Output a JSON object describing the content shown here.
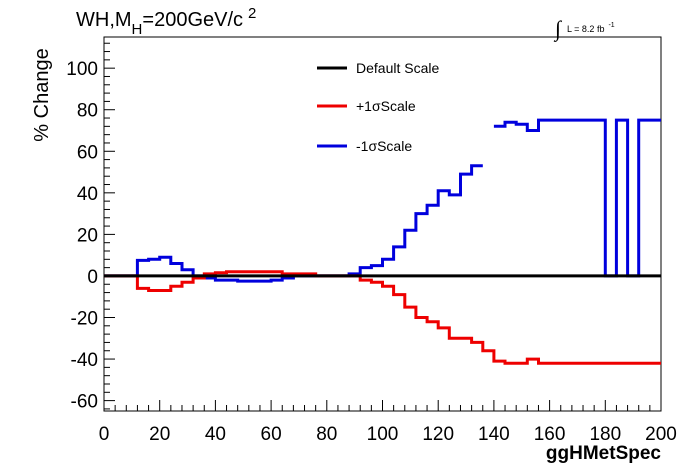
{
  "title": {
    "main": "WH,M",
    "sub": "H",
    "rest": "=200GeV/c",
    "sup": "2"
  },
  "lumi": {
    "integral": "∫",
    "text": "L = 8.2 fb",
    "sup": "-1"
  },
  "chart_data": {
    "type": "line",
    "xlabel": "ggHMetSpec",
    "ylabel": "% Change",
    "xlim": [
      0,
      200
    ],
    "ylim": [
      -65,
      115
    ],
    "xticks": [
      0,
      20,
      40,
      60,
      80,
      100,
      120,
      140,
      160,
      180,
      200
    ],
    "yticks": [
      -60,
      -40,
      -20,
      0,
      20,
      40,
      60,
      80,
      100
    ],
    "grid": false,
    "legend_position": "top-center",
    "bin_width": 4,
    "bin_edges_start": 0,
    "series": [
      {
        "name": "Default Scale",
        "color": "#000000",
        "values": [
          0,
          0,
          0,
          0,
          0,
          0,
          0,
          0,
          0,
          0,
          0,
          0,
          0,
          0,
          0,
          0,
          0,
          0,
          0,
          0,
          0,
          0,
          0,
          0,
          0,
          0,
          0,
          0,
          0,
          0,
          0,
          0,
          0,
          0,
          0,
          0,
          0,
          0,
          0,
          0,
          0,
          0,
          0,
          0,
          0,
          0,
          0,
          0,
          0,
          0
        ]
      },
      {
        "name": "+1σScale",
        "color": "#ee0000",
        "values": [
          0,
          0,
          0,
          -6,
          -7,
          -7,
          -5,
          -3,
          -1,
          1,
          1.5,
          2,
          2,
          2,
          2,
          2,
          1,
          1,
          1,
          0,
          0,
          0,
          0,
          -2,
          -3,
          -5,
          -9,
          -15,
          -20,
          -22,
          -25,
          -30,
          -30,
          -32,
          -36,
          -41,
          -42,
          -42,
          -40,
          -42,
          -42,
          -42,
          -42,
          -42,
          -42,
          -42,
          -42,
          -42,
          -42,
          -42
        ]
      },
      {
        "name": "-1σScale",
        "color": "#0000dd",
        "values": [
          0,
          0,
          0,
          7.5,
          8,
          9,
          6,
          3,
          0,
          -1,
          -2,
          -2,
          -2.5,
          -2.5,
          -2.5,
          -2,
          -1,
          0,
          0,
          0,
          0,
          0,
          1,
          4,
          5,
          8,
          14,
          22,
          30,
          34,
          41,
          39,
          49,
          53,
          null,
          72,
          74,
          73,
          70,
          75,
          75,
          75,
          75,
          75,
          75,
          0,
          0,
          0,
          0,
          75
        ],
        "overrides": {
          "46": 75,
          "48": 75
        }
      }
    ]
  }
}
